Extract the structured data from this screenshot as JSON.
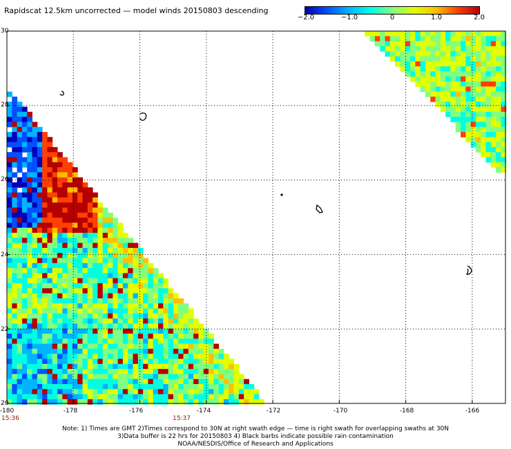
{
  "title": "Rapidscat 12.5km uncorrected — model winds 20150803 descending",
  "colorbar": {
    "colors": [
      "#0000b4",
      "#0050ff",
      "#00b4ff",
      "#00ffe0",
      "#80ff80",
      "#e0ff00",
      "#ffc000",
      "#ff4000",
      "#b40000"
    ],
    "min": -2.0,
    "max": 2.0,
    "tick_labels": [
      "−2.0",
      "−1.0",
      "0",
      "1.0",
      "2.0"
    ]
  },
  "map": {
    "lon_range": [
      -180,
      -165
    ],
    "lat_range": [
      20,
      30
    ],
    "grid": true,
    "lat_labels": [
      "30",
      "28",
      "26",
      "24",
      "22",
      "20"
    ],
    "lon_labels": [
      "-180",
      "-178",
      "-176",
      "-174",
      "-172",
      "-170",
      "-168",
      "-166"
    ],
    "swath_times": [
      {
        "label": "15:36",
        "lon": -180
      },
      {
        "label": "15:37",
        "lon": -175.7
      }
    ]
  },
  "notes": [
    "Note: 1) Times are GMT 2)Times correspond to 30N at right swath edge — time is right swath for overlapping swaths at 30N",
    "3)Data buffer is 22 hrs for 20150803 4) Black barbs indicate possible rain contamination",
    "NOAA/NESDIS/Office of Research and Applications"
  ]
}
